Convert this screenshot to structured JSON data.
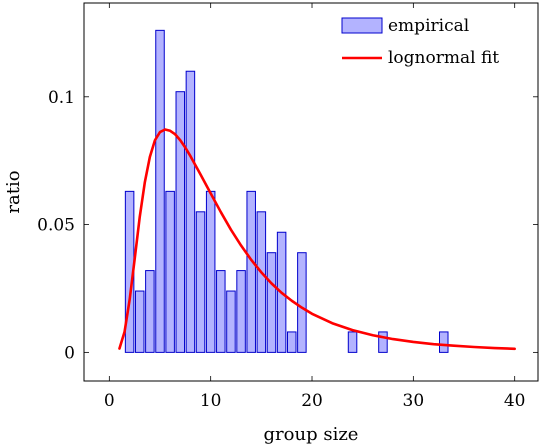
{
  "chart_data": {
    "type": "bar",
    "xlabel": "group size",
    "ylabel": "ratio",
    "xlim": [
      -2.5,
      42.3
    ],
    "ylim": [
      -0.0112,
      0.1367
    ],
    "xticks": [
      0,
      10,
      20,
      30,
      40
    ],
    "xtick_labels": [
      "0",
      "10",
      "20",
      "30",
      "40"
    ],
    "yticks": [
      0,
      0.05,
      0.1
    ],
    "ytick_labels": [
      "0",
      "0.05",
      "0.1"
    ],
    "legend_position": "top-right",
    "grid": false,
    "series": [
      {
        "name": "empirical",
        "type": "bar",
        "color": "#0000cc",
        "fill": "#b3b3ff",
        "x": [
          2,
          3,
          4,
          5,
          6,
          7,
          8,
          9,
          10,
          11,
          12,
          13,
          14,
          15,
          16,
          17,
          18,
          19,
          24,
          27,
          33
        ],
        "values": [
          0.063,
          0.024,
          0.032,
          0.126,
          0.063,
          0.102,
          0.11,
          0.055,
          0.063,
          0.032,
          0.024,
          0.032,
          0.063,
          0.055,
          0.039,
          0.047,
          0.008,
          0.039,
          0.008,
          0.008,
          0.008
        ]
      },
      {
        "name": "lognormal fit",
        "type": "line",
        "color": "#ff0000",
        "x": [
          1,
          1.5,
          2,
          2.5,
          3,
          3.5,
          4,
          4.5,
          5,
          5.5,
          6,
          6.5,
          7,
          7.5,
          8,
          9,
          10,
          11,
          12,
          13,
          14,
          15,
          16,
          17,
          18,
          19,
          20,
          22,
          24,
          26,
          28,
          30,
          32,
          34,
          36,
          38,
          40
        ],
        "values": [
          0.0015,
          0.008,
          0.0205,
          0.0365,
          0.053,
          0.0665,
          0.0765,
          0.083,
          0.0862,
          0.0872,
          0.0867,
          0.0853,
          0.083,
          0.0801,
          0.0768,
          0.0696,
          0.0622,
          0.0549,
          0.048,
          0.0418,
          0.0362,
          0.0313,
          0.027,
          0.0233,
          0.0202,
          0.0175,
          0.0151,
          0.0114,
          0.0087,
          0.0067,
          0.0052,
          0.0041,
          0.0032,
          0.0026,
          0.0021,
          0.0017,
          0.0014
        ]
      }
    ]
  }
}
